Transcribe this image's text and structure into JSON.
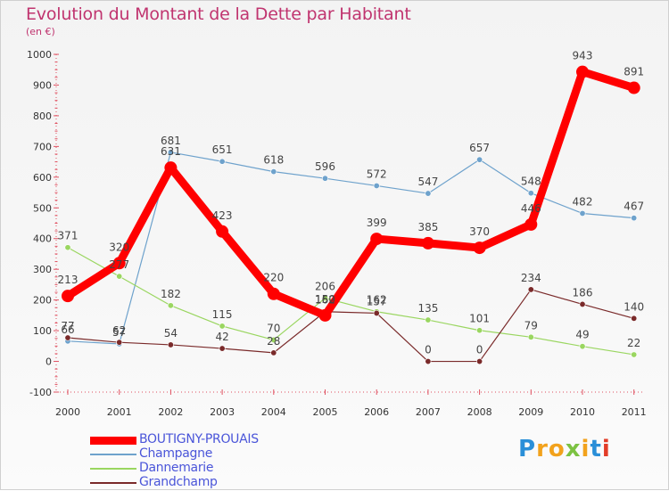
{
  "page": {
    "title": "Evolution du Montant de la Dette par Habitant",
    "subtitle": "(en €)",
    "brand_letters": [
      "P",
      "r",
      "o",
      "x",
      "i",
      "t",
      "i"
    ],
    "brand_colors": [
      "#2a8fd8",
      "#f2a21c",
      "#f2a21c",
      "#7cc242",
      "#f2a21c",
      "#2a8fd8",
      "#e23d28"
    ]
  },
  "chart_data": {
    "type": "line",
    "title": "Evolution du Montant de la Dette par Habitant",
    "subtitle": "(en €)",
    "xlabel": "",
    "ylabel": "(en €)",
    "categories": [
      "2000",
      "2001",
      "2002",
      "2003",
      "2004",
      "2005",
      "2006",
      "2007",
      "2008",
      "2009",
      "2010",
      "2011"
    ],
    "ylim": [
      -100,
      1000
    ],
    "yticks": [
      -100,
      0,
      100,
      200,
      300,
      400,
      500,
      600,
      700,
      800,
      900,
      1000
    ],
    "grid": false,
    "legend_position": "bottom-left",
    "series": [
      {
        "name": "BOUTIGNY-PROUAIS",
        "color": "#ff0000",
        "values": [
          213,
          320,
          631,
          423,
          220,
          150,
          399,
          385,
          370,
          446,
          943,
          891
        ]
      },
      {
        "name": "Champagne",
        "color": "#6ea2cc",
        "values": [
          66,
          57,
          681,
          651,
          618,
          596,
          572,
          547,
          657,
          548,
          482,
          467
        ]
      },
      {
        "name": "Dannemarie",
        "color": "#9ad660",
        "values": [
          371,
          277,
          182,
          115,
          70,
          206,
          162,
          135,
          101,
          79,
          49,
          22
        ]
      },
      {
        "name": "Grandchamp",
        "color": "#7a2a2a",
        "values": [
          77,
          62,
          54,
          42,
          28,
          162,
          157,
          0,
          0,
          234,
          186,
          140
        ]
      }
    ],
    "data_labels": [
      [
        "213",
        "320",
        "631",
        "423",
        "220",
        "150",
        "399",
        "385",
        "370",
        "446",
        "943",
        "891"
      ],
      [
        "66",
        "57",
        "681",
        "651",
        "618",
        "596",
        "572",
        "547",
        "657",
        "548",
        "482",
        "467"
      ],
      [
        "371",
        "277",
        "182",
        "115",
        "70",
        "206",
        "162",
        "135",
        "101",
        "79",
        "49",
        "22"
      ],
      [
        "77",
        "62",
        "54",
        "42",
        "28",
        "162",
        "157",
        "0",
        "0",
        "234",
        "186",
        "140"
      ]
    ]
  }
}
